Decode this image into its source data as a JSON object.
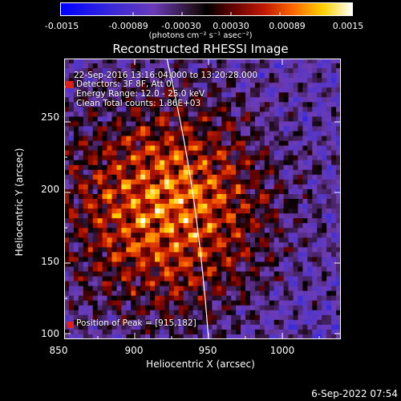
{
  "colorbar": {
    "ticks": [
      "-0.0015",
      "-0.00089",
      "-0.00030",
      "0.00030",
      "0.00089",
      "0.0015"
    ],
    "units": "(photons cm⁻² s⁻¹ asec⁻²)"
  },
  "title": "Reconstructed RHESSI Image",
  "info": {
    "time_range": "22-Sep-2016 13:16:04.000 to 13:20:28.000",
    "detectors": "Detectors: 3F 8F, Att 0",
    "energy": "Energy Range: 12.0 - 25.0 keV",
    "clean": "Clean     Total counts: 1.86E+03",
    "peak": "Position of Peak = [915,182]"
  },
  "axes": {
    "xlabel": "Heliocentric X (arcsec)",
    "ylabel": "Heliocentric Y (arcsec)",
    "xticks": [
      "850",
      "900",
      "950",
      "1000"
    ],
    "yticks": [
      "250",
      "200",
      "150",
      "100"
    ]
  },
  "image_data": {
    "x_range": [
      850,
      1040
    ],
    "y_range": [
      98,
      290
    ],
    "peak": [
      915,
      182
    ]
  },
  "timestamp": "6-Sep-2022 07:54",
  "colors": {
    "text": "#ffffff",
    "background": "#000000"
  }
}
